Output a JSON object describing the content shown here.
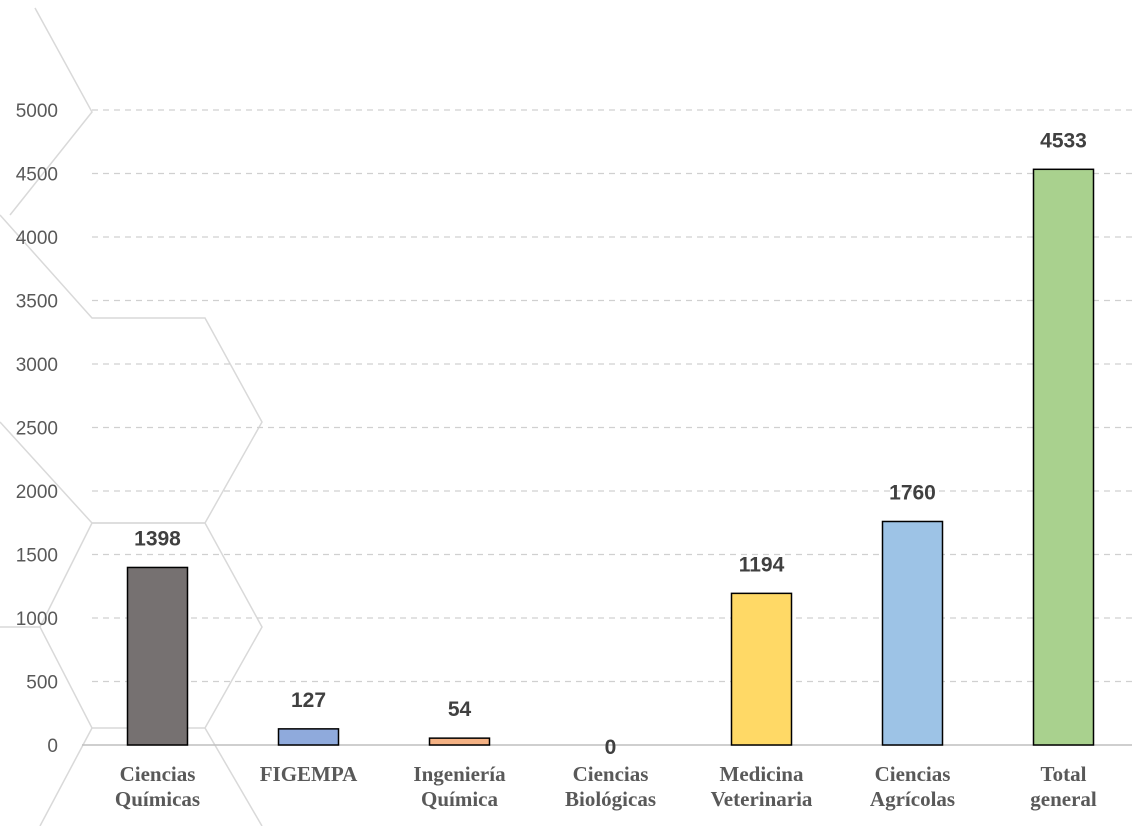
{
  "chart_data": {
    "type": "bar",
    "categories": [
      "Ciencias Químicas",
      "FIGEMPA",
      "Ingeniería Química",
      "Ciencias Biológicas",
      "Medicina Veterinaria",
      "Ciencias Agrícolas",
      "Total general"
    ],
    "values": [
      1398,
      127,
      54,
      0,
      1194,
      1760,
      4533
    ],
    "colors": [
      "#767171",
      "#8faadc",
      "#f4b183",
      "#9dc3e6",
      "#ffd966",
      "#9dc3e6",
      "#a9d18e"
    ],
    "ylim": [
      0,
      5000
    ],
    "yticks": [
      0,
      500,
      1000,
      1500,
      2000,
      2500,
      3000,
      3500,
      4000,
      4500,
      5000
    ],
    "grid": true
  }
}
